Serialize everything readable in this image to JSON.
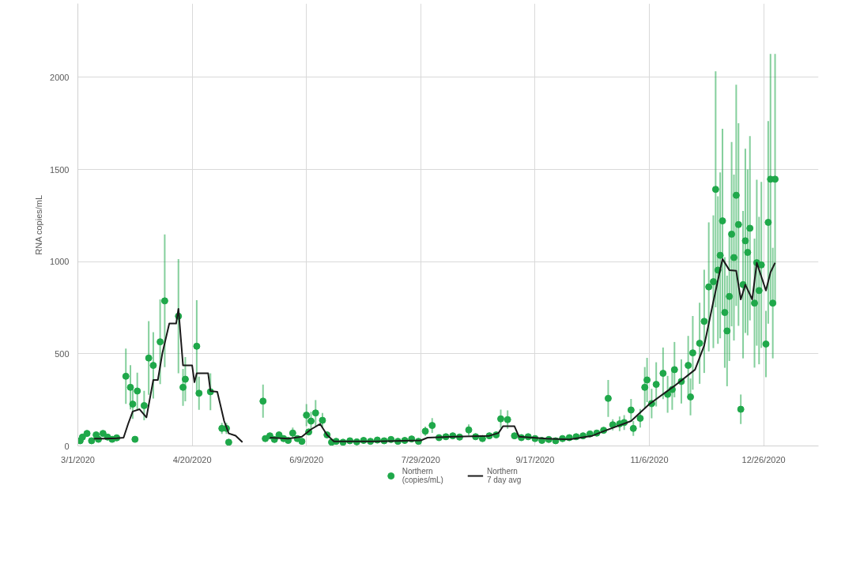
{
  "chart_data": {
    "type": "scatter",
    "ylabel": "RNA copies/mL",
    "xlim": [
      "2020-03-01",
      "2021-01-19"
    ],
    "xticks": [
      {
        "value": "2020-03-01",
        "label": "3/1/2020"
      },
      {
        "value": "2020-04-20",
        "label": "4/20/2020"
      },
      {
        "value": "2020-06-09",
        "label": "6/9/2020"
      },
      {
        "value": "2020-07-29",
        "label": "7/29/2020"
      },
      {
        "value": "2020-09-17",
        "label": "9/17/2020"
      },
      {
        "value": "2020-11-06",
        "label": "11/6/2020"
      },
      {
        "value": "2020-12-26",
        "label": "12/26/2020"
      }
    ],
    "ylim": [
      0,
      2400
    ],
    "yticks": [
      0,
      500,
      1000,
      1500,
      2000
    ],
    "grid": true,
    "legend": "bottom",
    "series": [
      {
        "name": "Northern\n(copies/mL)",
        "marker": "circle",
        "color": "#1fa84a",
        "x": [
          "2020-03-02",
          "2020-03-03",
          "2020-03-05",
          "2020-03-07",
          "2020-03-09",
          "2020-03-10",
          "2020-03-12",
          "2020-03-14",
          "2020-03-16",
          "2020-03-18",
          "2020-03-22",
          "2020-03-24",
          "2020-03-25",
          "2020-03-26",
          "2020-03-27",
          "2020-03-30",
          "2020-04-01",
          "2020-04-03",
          "2020-04-06",
          "2020-04-08",
          "2020-04-14",
          "2020-04-16",
          "2020-04-17",
          "2020-04-22",
          "2020-04-23",
          "2020-04-28",
          "2020-05-03",
          "2020-05-05",
          "2020-05-06",
          "2020-05-21",
          "2020-05-22",
          "2020-05-24",
          "2020-05-26",
          "2020-05-28",
          "2020-05-30",
          "2020-06-01",
          "2020-06-03",
          "2020-06-05",
          "2020-06-07",
          "2020-06-09",
          "2020-06-10",
          "2020-06-11",
          "2020-06-13",
          "2020-06-16",
          "2020-06-18",
          "2020-06-20",
          "2020-06-22",
          "2020-06-25",
          "2020-06-28",
          "2020-07-01",
          "2020-07-04",
          "2020-07-07",
          "2020-07-10",
          "2020-07-13",
          "2020-07-16",
          "2020-07-19",
          "2020-07-22",
          "2020-07-25",
          "2020-07-28",
          "2020-07-31",
          "2020-08-03",
          "2020-08-06",
          "2020-08-09",
          "2020-08-12",
          "2020-08-15",
          "2020-08-19",
          "2020-08-22",
          "2020-08-25",
          "2020-08-28",
          "2020-08-31",
          "2020-09-02",
          "2020-09-05",
          "2020-09-08",
          "2020-09-11",
          "2020-09-14",
          "2020-09-17",
          "2020-09-20",
          "2020-09-23",
          "2020-09-26",
          "2020-09-29",
          "2020-10-02",
          "2020-10-05",
          "2020-10-08",
          "2020-10-11",
          "2020-10-14",
          "2020-10-17",
          "2020-10-19",
          "2020-10-21",
          "2020-10-24",
          "2020-10-26",
          "2020-10-29",
          "2020-10-30",
          "2020-11-02",
          "2020-11-04",
          "2020-11-05",
          "2020-11-07",
          "2020-11-09",
          "2020-11-12",
          "2020-11-14",
          "2020-11-16",
          "2020-11-17",
          "2020-11-20",
          "2020-11-23",
          "2020-11-24",
          "2020-11-25",
          "2020-11-28",
          "2020-11-30",
          "2020-12-02",
          "2020-12-04",
          "2020-12-05",
          "2020-12-06",
          "2020-12-07",
          "2020-12-08",
          "2020-12-09",
          "2020-12-10",
          "2020-12-11",
          "2020-12-12",
          "2020-12-13",
          "2020-12-14",
          "2020-12-15",
          "2020-12-16",
          "2020-12-17",
          "2020-12-18",
          "2020-12-19",
          "2020-12-20",
          "2020-12-22",
          "2020-12-23",
          "2020-12-24",
          "2020-12-25",
          "2020-12-27",
          "2020-12-28",
          "2020-12-29",
          "2020-12-30",
          "2020-12-31"
        ],
        "values": [
          28,
          48,
          68,
          28,
          60,
          36,
          68,
          48,
          36,
          44,
          378,
          318,
          227,
          36,
          298,
          219,
          477,
          437,
          565,
          787,
          704,
          318,
          362,
          541,
          286,
          294,
          95,
          95,
          20,
          243,
          40,
          55,
          35,
          60,
          40,
          30,
          70,
          40,
          25,
          167,
          76,
          135,
          179,
          139,
          60,
          20,
          25,
          20,
          28,
          22,
          30,
          25,
          32,
          28,
          35,
          25,
          30,
          38,
          25,
          80,
          111,
          45,
          50,
          55,
          48,
          87,
          50,
          40,
          55,
          60,
          147,
          143,
          55,
          45,
          50,
          40,
          30,
          35,
          28,
          40,
          45,
          50,
          55,
          65,
          70,
          85,
          258,
          115,
          120,
          127,
          195,
          95,
          150,
          318,
          358,
          230,
          334,
          394,
          280,
          306,
          414,
          350,
          437,
          266,
          505,
          557,
          676,
          863,
          891,
          1392,
          954,
          1034,
          1221,
          724,
          624,
          811,
          1149,
          1022,
          1360,
          1201,
          199,
          875,
          1113,
          1050,
          1181,
          775,
          994,
          843,
          982,
          553,
          1213,
          1447,
          775,
          1447
        ],
        "errors": [
          null,
          null,
          null,
          null,
          null,
          null,
          null,
          null,
          null,
          null,
          150,
          120,
          80,
          null,
          100,
          80,
          200,
          180,
          230,
          360,
          310,
          100,
          120,
          250,
          90,
          100,
          30,
          30,
          null,
          90,
          null,
          null,
          null,
          null,
          null,
          null,
          30,
          null,
          null,
          60,
          null,
          50,
          70,
          40,
          null,
          null,
          null,
          null,
          null,
          null,
          null,
          null,
          null,
          null,
          null,
          null,
          null,
          null,
          null,
          25,
          40,
          null,
          null,
          null,
          null,
          30,
          null,
          null,
          null,
          null,
          50,
          50,
          null,
          null,
          null,
          null,
          null,
          null,
          null,
          null,
          null,
          null,
          null,
          null,
          null,
          null,
          100,
          30,
          40,
          40,
          60,
          40,
          50,
          110,
          120,
          80,
          120,
          140,
          100,
          110,
          150,
          120,
          160,
          100,
          200,
          220,
          280,
          350,
          360,
          640,
          400,
          450,
          500,
          300,
          300,
          350,
          500,
          450,
          600,
          550,
          80,
          400,
          500,
          450,
          500,
          350,
          450,
          400,
          450,
          180,
          550,
          680,
          300,
          680
        ]
      },
      {
        "name": "Northern\n7 day avg",
        "type": "line",
        "marker": "none",
        "line_style": "solid",
        "color": "#1a1a1a",
        "x": [
          "2020-03-08",
          "2020-03-13",
          "2020-03-18",
          "2020-03-21",
          "2020-03-23",
          "2020-03-25",
          "2020-03-28",
          "2020-03-31",
          "2020-04-03",
          "2020-04-05",
          "2020-04-07",
          "2020-04-10",
          "2020-04-13",
          "2020-04-14",
          "2020-04-16",
          "2020-04-20",
          "2020-04-21",
          "2020-04-22",
          "2020-04-27",
          "2020-04-28",
          "2020-05-01",
          "2020-05-04",
          "2020-05-06",
          "2020-05-09",
          "2020-05-12",
          "2020-05-18",
          "2020-05-24",
          "2020-06-01",
          "2020-06-07",
          "2020-06-11",
          "2020-06-15",
          "2020-06-18",
          "2020-06-21",
          "2020-07-09",
          "2020-07-29",
          "2020-08-01",
          "2020-08-13",
          "2020-08-28",
          "2020-09-01",
          "2020-09-03",
          "2020-09-08",
          "2020-09-10",
          "2020-09-22",
          "2020-10-02",
          "2020-10-12",
          "2020-10-17",
          "2020-10-29",
          "2020-11-06",
          "2020-11-17",
          "2020-11-26",
          "2020-11-30",
          "2020-12-04",
          "2020-12-08",
          "2020-12-11",
          "2020-12-14",
          "2020-12-16",
          "2020-12-18",
          "2020-12-21",
          "2020-12-23",
          "2020-12-27",
          "2020-12-29",
          "2020-12-31"
        ],
        "values": [
          40,
          40,
          42,
          45,
          120,
          187,
          199,
          155,
          358,
          358,
          505,
          664,
          664,
          744,
          437,
          437,
          346,
          394,
          394,
          298,
          294,
          135,
          68,
          56,
          20,
          null,
          45,
          40,
          50,
          90,
          119,
          60,
          25,
          25,
          30,
          45,
          50,
          55,
          70,
          107,
          107,
          50,
          40,
          35,
          55,
          80,
          135,
          227,
          326,
          414,
          545,
          783,
          1014,
          954,
          950,
          795,
          875,
          795,
          994,
          843,
          942,
          994
        ]
      }
    ]
  }
}
